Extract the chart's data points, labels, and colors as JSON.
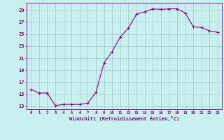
{
  "x": [
    0,
    1,
    2,
    3,
    4,
    5,
    6,
    7,
    8,
    9,
    10,
    11,
    12,
    13,
    14,
    15,
    16,
    17,
    18,
    19,
    20,
    21,
    22,
    23
  ],
  "y": [
    15.8,
    15.2,
    15.2,
    13.1,
    13.3,
    13.3,
    13.3,
    13.5,
    15.3,
    20.2,
    22.1,
    24.5,
    26.0,
    28.3,
    28.7,
    29.2,
    29.1,
    29.2,
    29.2,
    28.5,
    26.2,
    26.1,
    25.5,
    25.3
  ],
  "line_color": "#8b008b",
  "marker": "+",
  "bg_color": "#c8f0f0",
  "grid_color": "#a0c8c8",
  "tick_color": "#800080",
  "xlabel": "Windchill (Refroidissement éolien,°C)",
  "ylabel_ticks": [
    13,
    15,
    17,
    19,
    21,
    23,
    25,
    27,
    29
  ],
  "xlim": [
    -0.5,
    23.5
  ],
  "ylim": [
    12.5,
    30.2
  ]
}
